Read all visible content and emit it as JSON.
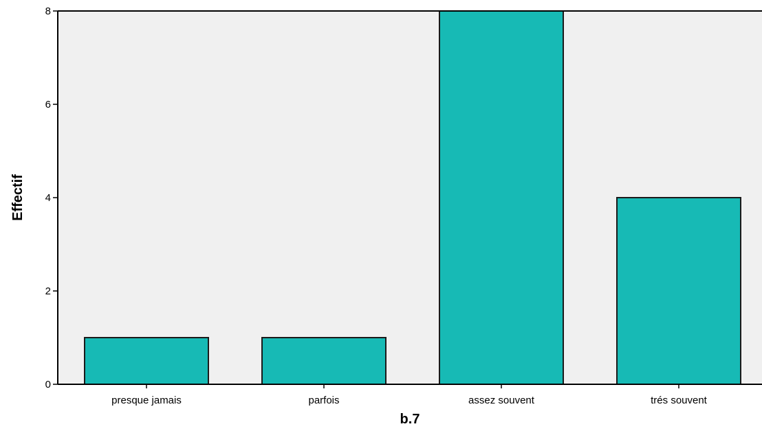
{
  "chart_data": {
    "type": "bar",
    "categories": [
      "presque jamais",
      "parfois",
      "assez souvent",
      "trés souvent"
    ],
    "values": [
      1,
      1,
      8,
      4
    ],
    "xlabel": "b.7",
    "ylabel": "Effectif",
    "ylim": [
      0,
      8
    ],
    "yticks": [
      0,
      2,
      4,
      6,
      8
    ],
    "grid": false,
    "colors": {
      "bar_fill": "#17bab5",
      "bar_stroke": "#1a1a1a",
      "plot_background": "#f0f0f0",
      "axis": "#000000"
    }
  }
}
